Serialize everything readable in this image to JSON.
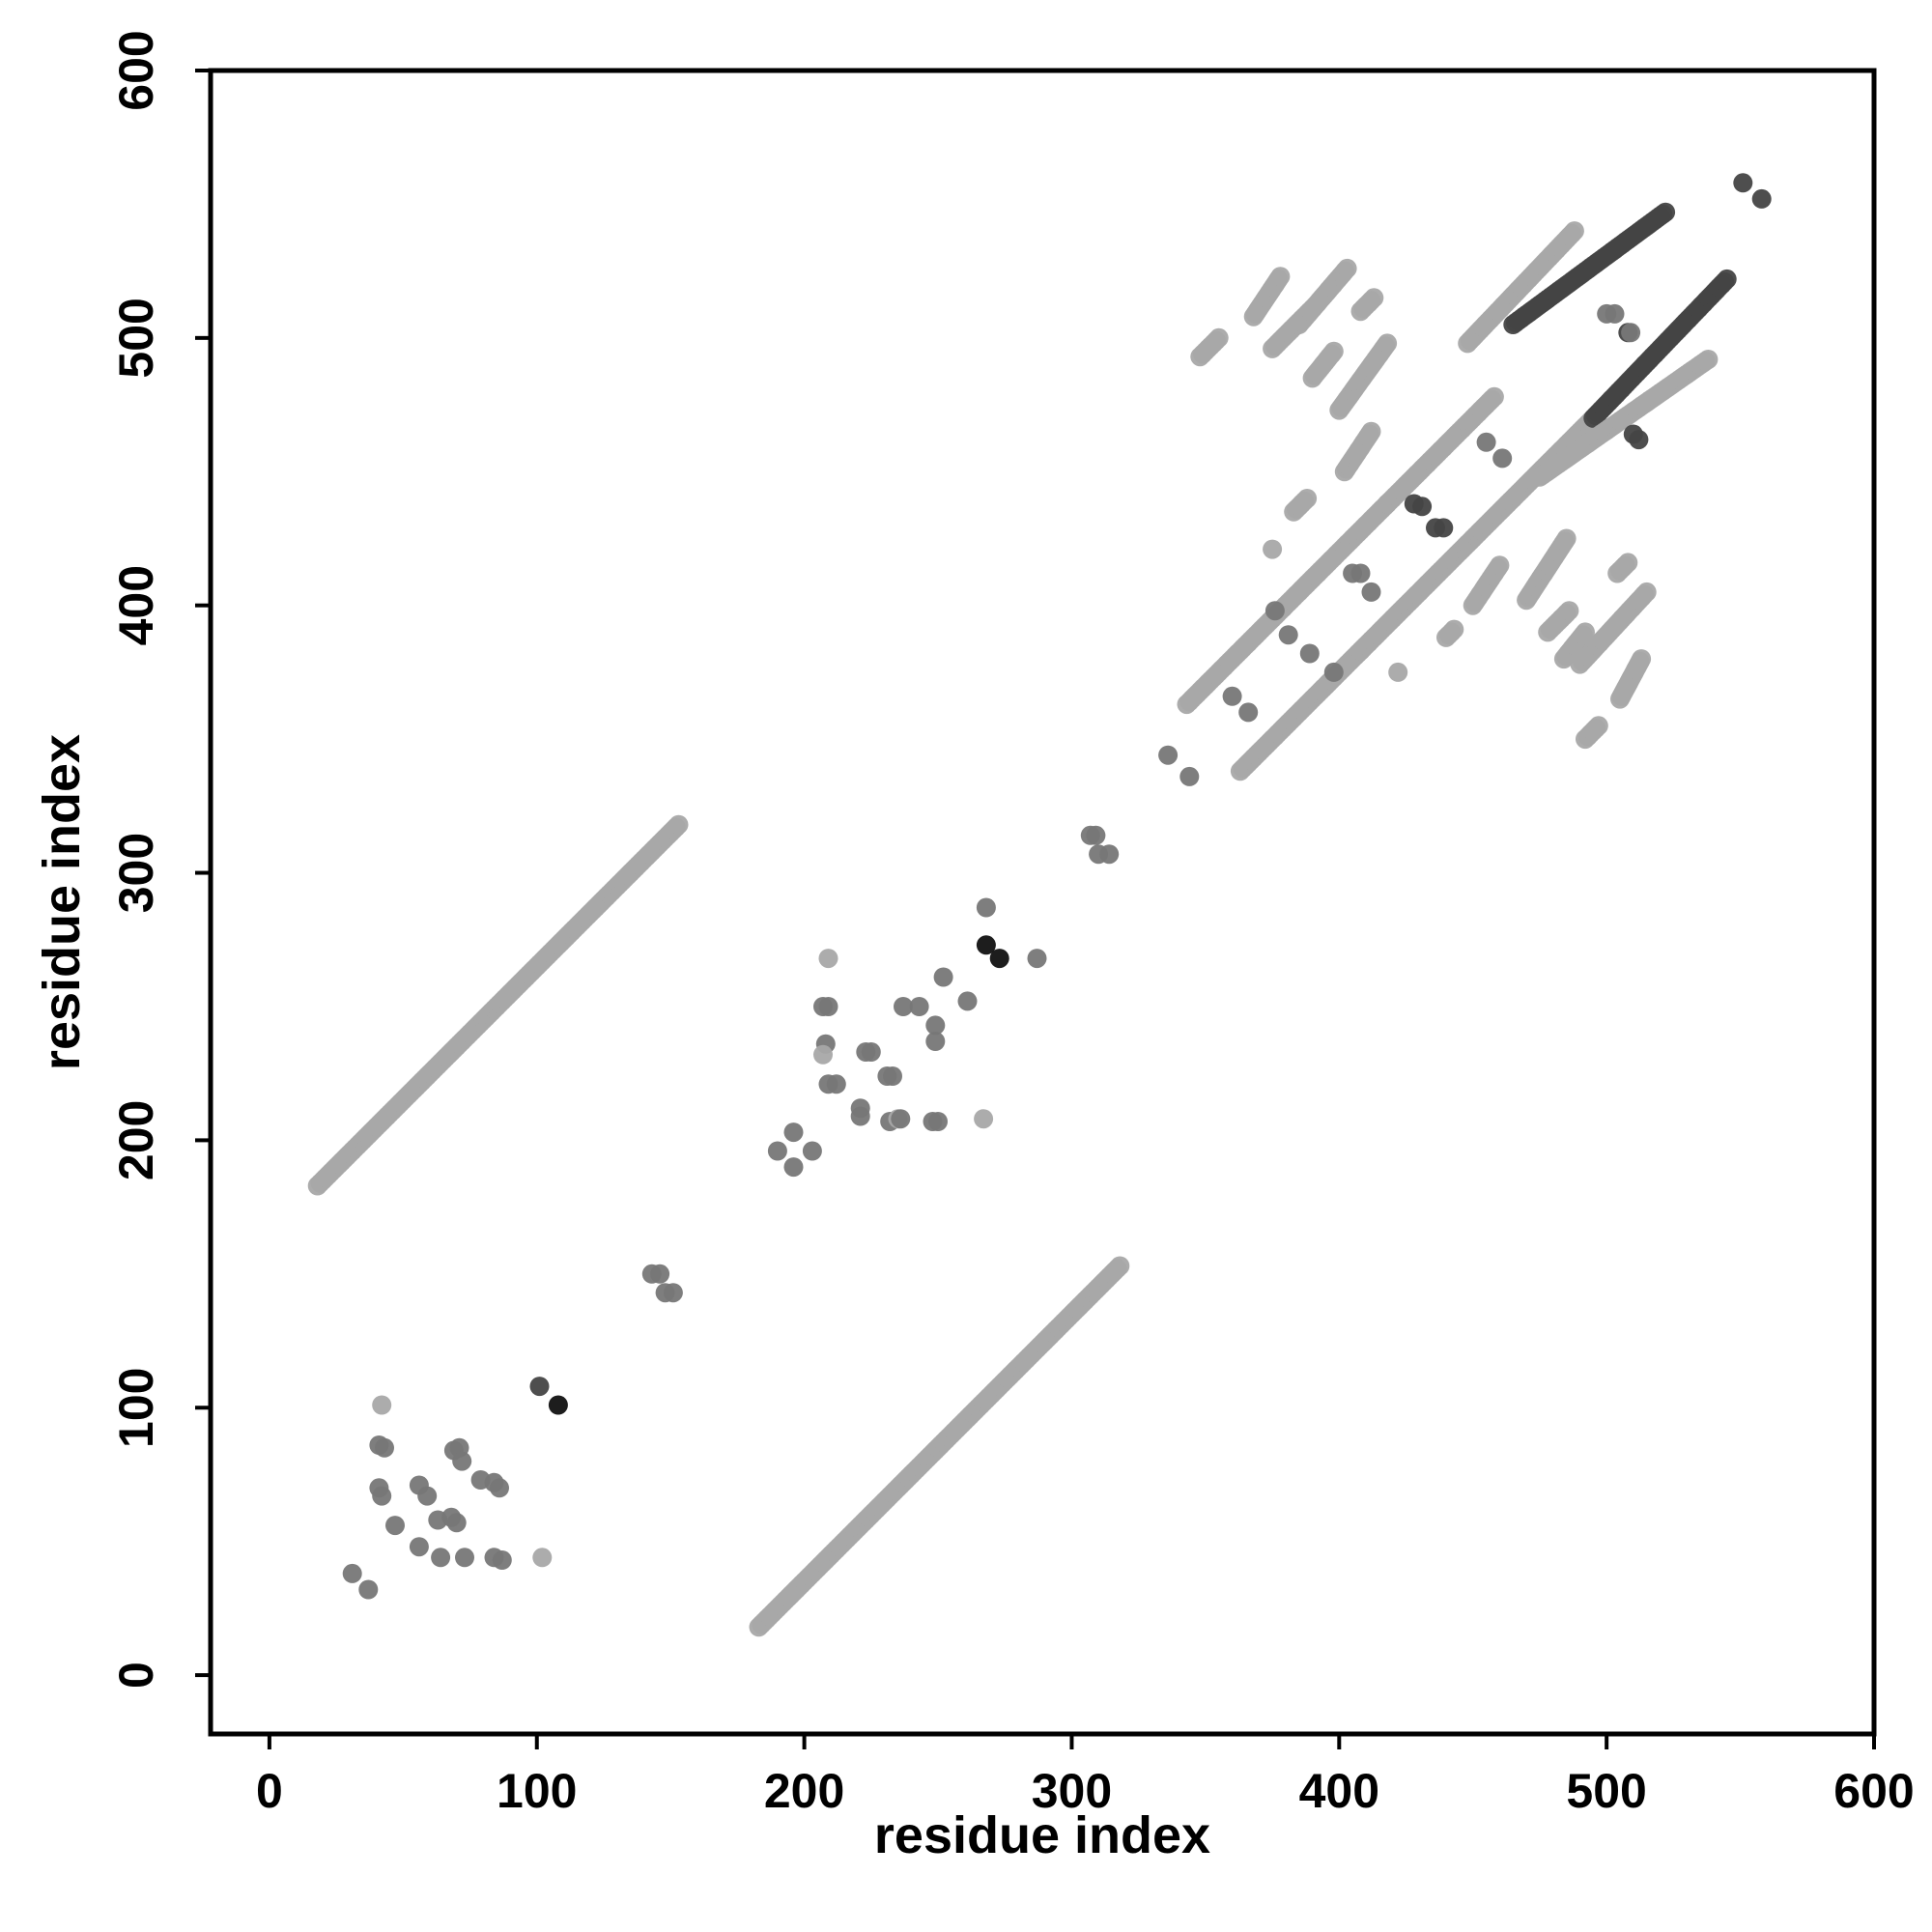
{
  "chart_data": {
    "type": "scatter",
    "title": "",
    "xlabel": "residue index",
    "ylabel": "residue index",
    "xlim": [
      -22,
      600
    ],
    "ylim": [
      -22,
      600
    ],
    "xticks": [
      0,
      100,
      200,
      300,
      400,
      500,
      600
    ],
    "yticks": [
      0,
      100,
      200,
      300,
      400,
      500,
      600
    ],
    "grid": false,
    "legend": "none",
    "colors": {
      "light": "#a8a8a8",
      "medium": "#777777",
      "dark": "#444444",
      "darkest": "#111111",
      "axis": "#000000"
    },
    "segments": [
      {
        "from": [
          18,
          183
        ],
        "to": [
          153,
          318
        ],
        "shade": "light"
      },
      {
        "from": [
          183,
          18
        ],
        "to": [
          318,
          153
        ],
        "shade": "light"
      },
      {
        "from": [
          343,
          363
        ],
        "to": [
          418,
          438
        ],
        "shade": "light"
      },
      {
        "from": [
          418,
          438
        ],
        "to": [
          458,
          478
        ],
        "shade": "light"
      },
      {
        "from": [
          448,
          498
        ],
        "to": [
          488,
          540
        ],
        "shade": "light"
      },
      {
        "from": [
          465,
          505
        ],
        "to": [
          522,
          547
        ],
        "shade": "dark"
      },
      {
        "from": [
          363,
          338
        ],
        "to": [
          408,
          383
        ],
        "shade": "light"
      },
      {
        "from": [
          408,
          383
        ],
        "to": [
          495,
          470
        ],
        "shade": "light"
      },
      {
        "from": [
          495,
          470
        ],
        "to": [
          545,
          522
        ],
        "shade": "dark"
      },
      {
        "from": [
          475,
          448
        ],
        "to": [
          538,
          492
        ],
        "shade": "light"
      },
      {
        "from": [
          348,
          493
        ],
        "to": [
          355,
          500
        ],
        "shade": "light"
      },
      {
        "from": [
          368,
          508
        ],
        "to": [
          378,
          523
        ],
        "shade": "light"
      },
      {
        "from": [
          375,
          496
        ],
        "to": [
          390,
          511
        ],
        "shade": "light"
      },
      {
        "from": [
          385,
          505
        ],
        "to": [
          403,
          526
        ],
        "shade": "light"
      },
      {
        "from": [
          390,
          485
        ],
        "to": [
          398,
          495
        ],
        "shade": "light"
      },
      {
        "from": [
          400,
          473
        ],
        "to": [
          418,
          498
        ],
        "shade": "light"
      },
      {
        "from": [
          408,
          510
        ],
        "to": [
          413,
          515
        ],
        "shade": "light"
      },
      {
        "from": [
          402,
          450
        ],
        "to": [
          412,
          465
        ],
        "shade": "light"
      },
      {
        "from": [
          383,
          435
        ],
        "to": [
          388,
          440
        ],
        "shade": "light"
      },
      {
        "from": [
          440,
          388
        ],
        "to": [
          443,
          391
        ],
        "shade": "light"
      },
      {
        "from": [
          450,
          400
        ],
        "to": [
          460,
          415
        ],
        "shade": "light"
      },
      {
        "from": [
          470,
          402
        ],
        "to": [
          485,
          425
        ],
        "shade": "light"
      },
      {
        "from": [
          478,
          390
        ],
        "to": [
          486,
          398
        ],
        "shade": "light"
      },
      {
        "from": [
          484,
          380
        ],
        "to": [
          492,
          390
        ],
        "shade": "light"
      },
      {
        "from": [
          490,
          378
        ],
        "to": [
          515,
          405
        ],
        "shade": "light"
      },
      {
        "from": [
          492,
          350
        ],
        "to": [
          497,
          355
        ],
        "shade": "light"
      },
      {
        "from": [
          505,
          365
        ],
        "to": [
          513,
          380
        ],
        "shade": "light"
      },
      {
        "from": [
          504,
          412
        ],
        "to": [
          508,
          416
        ],
        "shade": "light"
      }
    ],
    "points": [
      [
        31,
        38,
        "medium"
      ],
      [
        37,
        32,
        "medium"
      ],
      [
        42,
        101,
        "light"
      ],
      [
        41,
        86,
        "medium"
      ],
      [
        43,
        85,
        "medium"
      ],
      [
        41,
        70,
        "medium"
      ],
      [
        42,
        67,
        "medium"
      ],
      [
        47,
        56,
        "medium"
      ],
      [
        56,
        48,
        "medium"
      ],
      [
        56,
        71,
        "medium"
      ],
      [
        59,
        67,
        "medium"
      ],
      [
        63,
        58,
        "medium"
      ],
      [
        64,
        44,
        "medium"
      ],
      [
        68,
        59,
        "medium"
      ],
      [
        69,
        84,
        "medium"
      ],
      [
        71,
        85,
        "medium"
      ],
      [
        72,
        80,
        "medium"
      ],
      [
        70,
        57,
        "medium"
      ],
      [
        73,
        44,
        "medium"
      ],
      [
        79,
        73,
        "medium"
      ],
      [
        84,
        72,
        "medium"
      ],
      [
        86,
        70,
        "medium"
      ],
      [
        84,
        44,
        "medium"
      ],
      [
        87,
        43,
        "medium"
      ],
      [
        102,
        44,
        "light"
      ],
      [
        101,
        108,
        "dark"
      ],
      [
        108,
        101,
        "darkest"
      ],
      [
        143,
        150,
        "medium"
      ],
      [
        146,
        150,
        "medium"
      ],
      [
        148,
        143,
        "medium"
      ],
      [
        151,
        143,
        "medium"
      ],
      [
        190,
        196,
        "medium"
      ],
      [
        196,
        190,
        "medium"
      ],
      [
        196,
        203,
        "medium"
      ],
      [
        203,
        196,
        "medium"
      ],
      [
        207,
        250,
        "medium"
      ],
      [
        209,
        250,
        "medium"
      ],
      [
        208,
        236,
        "medium"
      ],
      [
        207,
        232,
        "light"
      ],
      [
        209,
        221,
        "medium"
      ],
      [
        212,
        221,
        "medium"
      ],
      [
        209,
        268,
        "light"
      ],
      [
        221,
        209,
        "medium"
      ],
      [
        221,
        212,
        "medium"
      ],
      [
        223,
        233,
        "medium"
      ],
      [
        225,
        233,
        "medium"
      ],
      [
        231,
        224,
        "medium"
      ],
      [
        233,
        224,
        "medium"
      ],
      [
        232,
        207,
        "medium"
      ],
      [
        235,
        208,
        "light"
      ],
      [
        236,
        208,
        "medium"
      ],
      [
        237,
        250,
        "medium"
      ],
      [
        243,
        250,
        "medium"
      ],
      [
        248,
        207,
        "medium"
      ],
      [
        250,
        207,
        "medium"
      ],
      [
        249,
        243,
        "medium"
      ],
      [
        249,
        237,
        "medium"
      ],
      [
        252,
        261,
        "medium"
      ],
      [
        261,
        252,
        "medium"
      ],
      [
        267,
        208,
        "light"
      ],
      [
        268,
        273,
        "darkest"
      ],
      [
        268,
        287,
        "medium"
      ],
      [
        273,
        268,
        "darkest"
      ],
      [
        287,
        268,
        "medium"
      ],
      [
        307,
        314,
        "medium"
      ],
      [
        309,
        314,
        "medium"
      ],
      [
        310,
        307,
        "medium"
      ],
      [
        314,
        307,
        "medium"
      ],
      [
        336,
        344,
        "medium"
      ],
      [
        344,
        336,
        "medium"
      ],
      [
        360,
        366,
        "medium"
      ],
      [
        366,
        360,
        "medium"
      ],
      [
        375,
        421,
        "light"
      ],
      [
        376,
        398,
        "medium"
      ],
      [
        381,
        389,
        "medium"
      ],
      [
        389,
        382,
        "medium"
      ],
      [
        398,
        375,
        "medium"
      ],
      [
        405,
        412,
        "medium"
      ],
      [
        408,
        412,
        "medium"
      ],
      [
        412,
        405,
        "medium"
      ],
      [
        422,
        375,
        "light"
      ],
      [
        428,
        438,
        "dark"
      ],
      [
        431,
        437,
        "dark"
      ],
      [
        436,
        429,
        "dark"
      ],
      [
        439,
        429,
        "dark"
      ],
      [
        455,
        461,
        "medium"
      ],
      [
        461,
        455,
        "medium"
      ],
      [
        500,
        509,
        "medium"
      ],
      [
        503,
        509,
        "medium"
      ],
      [
        508,
        502,
        "dark"
      ],
      [
        509,
        502,
        "medium"
      ],
      [
        510,
        464,
        "dark"
      ],
      [
        512,
        462,
        "dark"
      ],
      [
        551,
        558,
        "dark"
      ],
      [
        558,
        552,
        "dark"
      ]
    ]
  }
}
